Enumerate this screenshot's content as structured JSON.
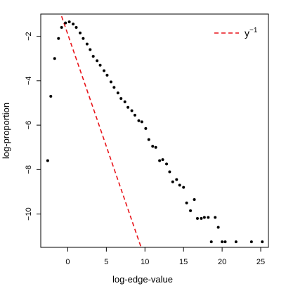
{
  "chart_data": {
    "type": "scatter",
    "xlabel": "log-edge-value",
    "ylabel": "log-proportion",
    "xlim": [
      -3.5,
      26.0
    ],
    "ylim": [
      -11.5,
      -1.0
    ],
    "x_ticks": [
      0,
      5,
      10,
      15,
      20,
      25
    ],
    "x_tick_labels": [
      "0",
      "5",
      "10",
      "15",
      "20",
      "25"
    ],
    "y_ticks": [
      -10,
      -8,
      -6,
      -4,
      -2
    ],
    "y_tick_labels": [
      "−10",
      "−8",
      "−6",
      "−4",
      "−2"
    ],
    "grid": false,
    "legend_position": "top-right",
    "legend": {
      "label_base": "y",
      "label_exponent": "−1",
      "color": "#e8141a"
    },
    "point_color": "#000000",
    "series": [
      {
        "kind": "points",
        "x": [
          -2.6,
          -2.2,
          -1.7,
          -1.2,
          -0.8,
          -0.3,
          0.2,
          0.7,
          1.1,
          1.6,
          2.0,
          2.5,
          2.9,
          3.3,
          3.8,
          4.2,
          4.7,
          5.1,
          5.6,
          6.0,
          6.5,
          6.9,
          7.4,
          7.8,
          8.3,
          8.7,
          9.2,
          9.6,
          10.1,
          10.5,
          11.0,
          11.4,
          11.9,
          12.3,
          12.8,
          13.2,
          13.6,
          14.1,
          14.5,
          15.0,
          15.4,
          15.9,
          16.4,
          16.8,
          17.3,
          17.7,
          18.2,
          18.6,
          19.1,
          19.5,
          20.0,
          20.4,
          21.8,
          23.8,
          25.2
        ],
        "y": [
          -7.6,
          -4.7,
          -3.0,
          -2.1,
          -1.6,
          -1.4,
          -1.35,
          -1.45,
          -1.6,
          -1.85,
          -2.1,
          -2.35,
          -2.6,
          -2.9,
          -3.1,
          -3.3,
          -3.55,
          -3.75,
          -4.05,
          -4.3,
          -4.55,
          -4.8,
          -4.95,
          -5.2,
          -5.35,
          -5.55,
          -5.8,
          -5.85,
          -6.15,
          -6.65,
          -6.95,
          -7.0,
          -7.6,
          -7.55,
          -7.75,
          -8.1,
          -8.55,
          -8.45,
          -8.7,
          -8.8,
          -9.5,
          -9.85,
          -9.35,
          -10.2,
          -10.2,
          -10.15,
          -10.15,
          -11.25,
          -10.15,
          -10.6,
          -11.25,
          -11.25,
          -11.25,
          -11.25,
          -11.25
        ],
        "color": "#000000"
      },
      {
        "kind": "line",
        "x": [
          -0.8,
          9.6
        ],
        "y": [
          -1.1,
          -11.6
        ],
        "color": "#e8141a",
        "dashed": true
      }
    ]
  }
}
